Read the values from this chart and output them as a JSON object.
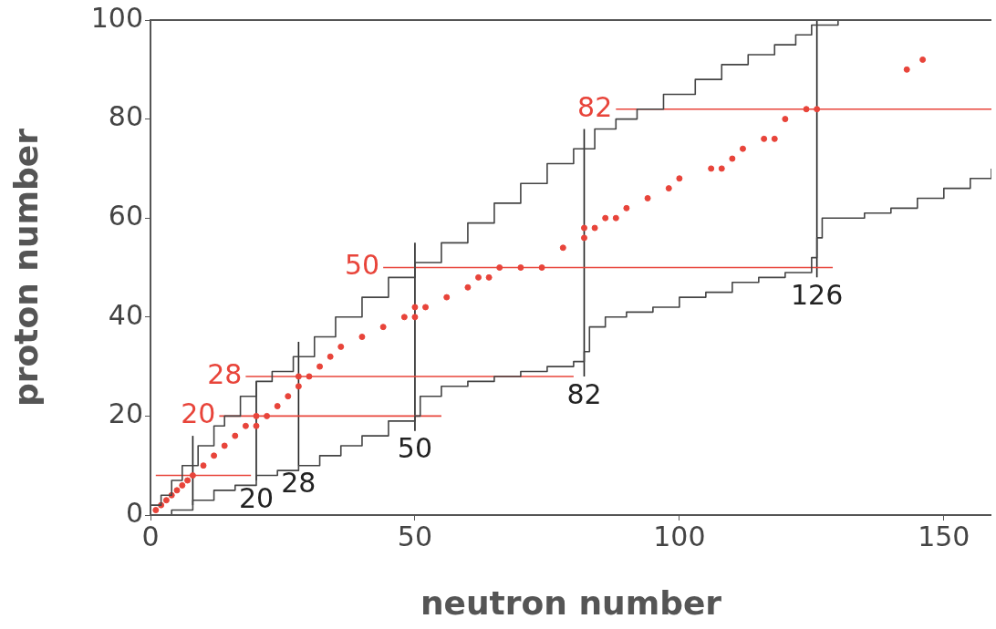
{
  "chart_data": {
    "type": "line",
    "xlabel": "neutron number",
    "ylabel": "proton number",
    "xlim": [
      0,
      159
    ],
    "ylim": [
      0,
      100
    ],
    "xticks": [
      0,
      50,
      100,
      150
    ],
    "yticks": [
      0,
      20,
      40,
      60,
      80,
      100
    ],
    "grid": false,
    "legend": false,
    "marker": "none",
    "line_style": "solid",
    "series": [
      {
        "type": "step",
        "color": "#444444",
        "x": [
          0,
          2,
          4,
          6,
          9,
          12,
          14,
          17,
          20,
          23,
          27,
          31,
          35,
          40,
          45,
          50,
          55,
          60,
          65,
          70,
          75,
          80,
          84,
          88,
          92,
          97,
          103,
          108,
          113,
          118,
          122,
          125,
          130,
          134
        ],
        "values": [
          2,
          4,
          7,
          10,
          14,
          18,
          20,
          24,
          27,
          29,
          32,
          36,
          40,
          44,
          48,
          51,
          55,
          59,
          63,
          67,
          71,
          74,
          78,
          80,
          82,
          85,
          88,
          91,
          93,
          95,
          97,
          99,
          100,
          100
        ]
      },
      {
        "type": "step",
        "color": "#444444",
        "x": [
          0,
          4,
          8,
          12,
          16,
          20,
          24,
          28,
          32,
          36,
          40,
          45,
          50,
          51,
          55,
          60,
          65,
          70,
          75,
          80,
          82,
          83,
          86,
          90,
          95,
          100,
          105,
          110,
          115,
          120,
          125,
          126,
          127,
          130,
          135,
          140,
          145,
          150,
          155,
          159
        ],
        "values": [
          0,
          1,
          3,
          5,
          6,
          8,
          9,
          10,
          12,
          14,
          16,
          19,
          20,
          24,
          26,
          27,
          28,
          29,
          30,
          31,
          33,
          38,
          40,
          41,
          42,
          44,
          45,
          47,
          48,
          49,
          52,
          56,
          60,
          60,
          61,
          62,
          64,
          66,
          68,
          70
        ]
      },
      {
        "type": "scatter",
        "marker": "circle",
        "color": "#e8443a",
        "x": [
          1,
          2,
          3,
          4,
          5,
          6,
          7,
          8,
          10,
          12,
          14,
          16,
          18,
          20,
          20,
          22,
          24,
          26,
          28,
          28,
          30,
          32,
          34,
          36,
          40,
          44,
          48,
          50,
          50,
          52,
          56,
          60,
          62,
          64,
          66,
          70,
          74,
          78,
          82,
          82,
          84,
          86,
          88,
          90,
          94,
          98,
          100,
          106,
          108,
          110,
          112,
          116,
          118,
          120,
          124,
          126,
          143,
          146
        ],
        "values": [
          1,
          2,
          3,
          4,
          5,
          6,
          7,
          8,
          10,
          12,
          14,
          16,
          18,
          20,
          18,
          20,
          22,
          24,
          26,
          28,
          28,
          30,
          32,
          34,
          36,
          38,
          40,
          40,
          42,
          42,
          44,
          46,
          48,
          48,
          50,
          50,
          50,
          54,
          56,
          58,
          58,
          60,
          60,
          62,
          64,
          66,
          68,
          70,
          70,
          72,
          74,
          76,
          76,
          80,
          82,
          82,
          90,
          92
        ]
      },
      {
        "color": "#e8443a",
        "x": [
          1,
          19
        ],
        "values": [
          8,
          8
        ]
      },
      {
        "color": "#e8443a",
        "x": [
          13,
          55
        ],
        "values": [
          20,
          20
        ]
      },
      {
        "color": "#e8443a",
        "x": [
          18,
          80
        ],
        "values": [
          28,
          28
        ]
      },
      {
        "color": "#e8443a",
        "x": [
          44,
          129
        ],
        "values": [
          50,
          50
        ]
      },
      {
        "color": "#e8443a",
        "x": [
          88,
          159
        ],
        "values": [
          82,
          82
        ]
      },
      {
        "color": "#222222",
        "x": [
          8,
          8
        ],
        "values": [
          2,
          16
        ]
      },
      {
        "color": "#222222",
        "x": [
          20,
          20
        ],
        "values": [
          7,
          27
        ]
      },
      {
        "color": "#222222",
        "x": [
          28,
          28
        ],
        "values": [
          10,
          35
        ]
      },
      {
        "color": "#222222",
        "x": [
          50,
          50
        ],
        "values": [
          17,
          55
        ]
      },
      {
        "color": "#222222",
        "x": [
          82,
          82
        ],
        "values": [
          28,
          78
        ]
      },
      {
        "color": "#222222",
        "x": [
          126,
          126
        ],
        "values": [
          48,
          100
        ]
      }
    ],
    "annotations": [
      {
        "text": "20",
        "x": 13,
        "y": 20
      },
      {
        "text": "28",
        "x": 18,
        "y": 28
      },
      {
        "text": "50",
        "x": 44,
        "y": 50
      },
      {
        "text": "82",
        "x": 88,
        "y": 82
      },
      {
        "text": "20",
        "x": 20,
        "y": 7
      },
      {
        "text": "28",
        "x": 28,
        "y": 10
      },
      {
        "text": "50",
        "x": 50,
        "y": 17
      },
      {
        "text": "82",
        "x": 82,
        "y": 28
      },
      {
        "text": "126",
        "x": 126,
        "y": 48
      }
    ]
  }
}
